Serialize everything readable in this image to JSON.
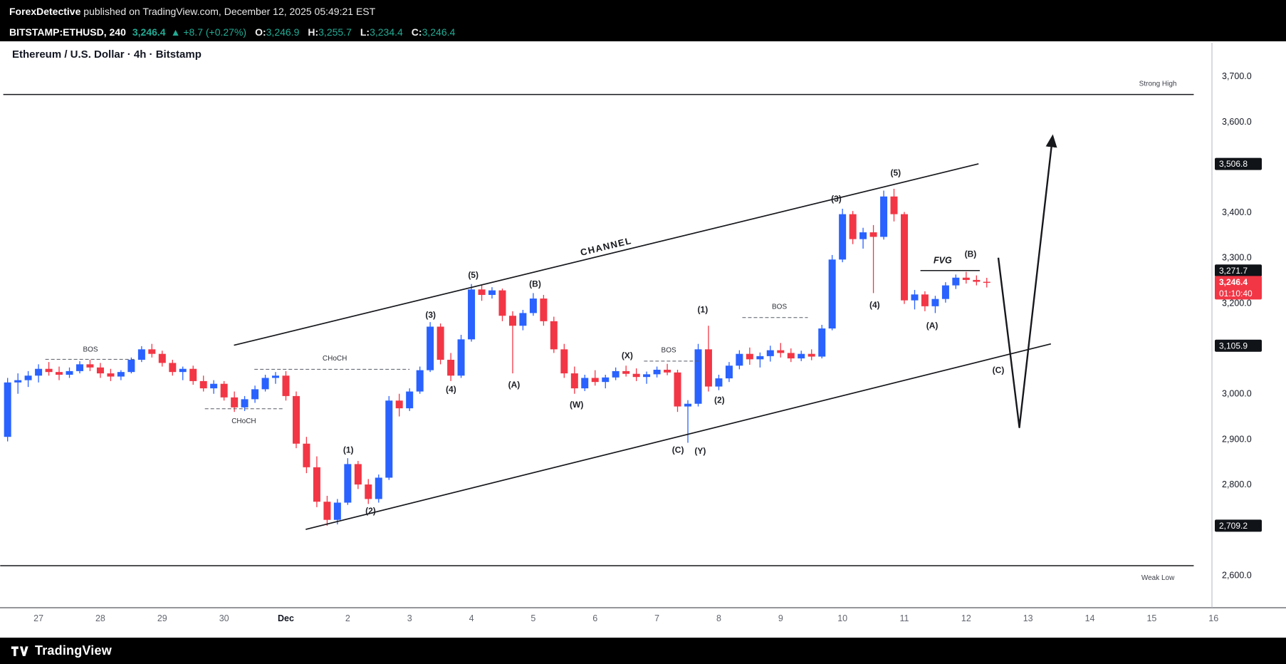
{
  "publish_bar": {
    "author": "ForexDetective",
    "text": " published on TradingView.com, December 12, 2025 05:49:21 EST"
  },
  "symbol_bar": {
    "symbol": "BITSTAMP:ETHUSD, 240",
    "last": "3,246.4",
    "change": "▲ +8.7 (+0.27%)",
    "ohlc": [
      {
        "label": "O:",
        "value": "3,246.9"
      },
      {
        "label": "H:",
        "value": "3,255.7"
      },
      {
        "label": "L:",
        "value": "3,234.4"
      },
      {
        "label": "C:",
        "value": "3,246.4"
      }
    ]
  },
  "chart_title": "Ethereum / U.S. Dollar · 4h · Bitstamp",
  "footer_brand": "TradingView",
  "colors": {
    "up": "#2962ff",
    "down": "#f23645",
    "accent_red": "#f23645",
    "badge_dark": "#101318",
    "text_dark": "#131722",
    "text_gray": "#62666f",
    "line_dark": "#17181c"
  },
  "chart_data": {
    "type": "candlestick",
    "title": "Ethereum / U.S. Dollar · 4h · Bitstamp",
    "symbol": "BITSTAMP:ETHUSD",
    "interval": "240",
    "price_axis": {
      "min": 2600,
      "max": 3700,
      "ticks": [
        3700,
        3600,
        3400,
        3300,
        3200,
        3000,
        2900,
        2800,
        2600
      ]
    },
    "time_axis": {
      "ticks": [
        {
          "t": 1,
          "label": "27"
        },
        {
          "t": 2,
          "label": "28"
        },
        {
          "t": 3,
          "label": "29"
        },
        {
          "t": 4,
          "label": "30"
        },
        {
          "t": 5,
          "label": "Dec"
        },
        {
          "t": 6,
          "label": "2"
        },
        {
          "t": 7,
          "label": "3"
        },
        {
          "t": 8,
          "label": "4"
        },
        {
          "t": 9,
          "label": "5"
        },
        {
          "t": 10,
          "label": "6"
        },
        {
          "t": 11,
          "label": "7"
        },
        {
          "t": 12,
          "label": "8"
        },
        {
          "t": 13,
          "label": "9"
        },
        {
          "t": 14,
          "label": "10"
        },
        {
          "t": 15,
          "label": "11"
        },
        {
          "t": 16,
          "label": "12"
        },
        {
          "t": 17,
          "label": "13"
        },
        {
          "t": 18,
          "label": "14"
        },
        {
          "t": 19,
          "label": "15"
        },
        {
          "t": 20,
          "label": "16"
        }
      ]
    },
    "candles": [
      [
        0.5,
        2905,
        3035,
        2895,
        3025
      ],
      [
        0.667,
        3025,
        3045,
        3000,
        3030
      ],
      [
        0.833,
        3030,
        3050,
        3015,
        3040
      ],
      [
        1,
        3040,
        3065,
        3025,
        3055
      ],
      [
        1.167,
        3055,
        3070,
        3040,
        3048
      ],
      [
        1.333,
        3048,
        3060,
        3030,
        3042
      ],
      [
        1.5,
        3042,
        3058,
        3035,
        3050
      ],
      [
        1.667,
        3050,
        3072,
        3045,
        3065
      ],
      [
        1.833,
        3065,
        3075,
        3050,
        3058
      ],
      [
        2,
        3058,
        3068,
        3035,
        3045
      ],
      [
        2.167,
        3045,
        3055,
        3028,
        3038
      ],
      [
        2.333,
        3038,
        3052,
        3030,
        3048
      ],
      [
        2.5,
        3048,
        3080,
        3045,
        3075
      ],
      [
        2.667,
        3075,
        3105,
        3070,
        3098
      ],
      [
        2.833,
        3098,
        3110,
        3080,
        3088
      ],
      [
        3,
        3088,
        3095,
        3060,
        3068
      ],
      [
        3.167,
        3068,
        3075,
        3040,
        3048
      ],
      [
        3.333,
        3048,
        3060,
        3030,
        3055
      ],
      [
        3.5,
        3055,
        3062,
        3020,
        3028
      ],
      [
        3.667,
        3028,
        3040,
        3005,
        3012
      ],
      [
        3.833,
        3012,
        3030,
        3000,
        3022
      ],
      [
        4,
        3022,
        3028,
        2985,
        2992
      ],
      [
        4.167,
        2992,
        3005,
        2960,
        2970
      ],
      [
        4.333,
        2970,
        2995,
        2962,
        2988
      ],
      [
        4.5,
        2988,
        3018,
        2980,
        3010
      ],
      [
        4.667,
        3010,
        3042,
        3005,
        3035
      ],
      [
        4.833,
        3035,
        3048,
        3022,
        3040
      ],
      [
        5,
        3040,
        3050,
        2985,
        2995
      ],
      [
        5.167,
        2995,
        3005,
        2880,
        2890
      ],
      [
        5.333,
        2890,
        2905,
        2825,
        2838
      ],
      [
        5.5,
        2838,
        2862,
        2750,
        2762
      ],
      [
        5.667,
        2762,
        2775,
        2709,
        2722
      ],
      [
        5.833,
        2722,
        2768,
        2712,
        2760
      ],
      [
        6,
        2760,
        2858,
        2755,
        2845
      ],
      [
        6.167,
        2845,
        2852,
        2790,
        2800
      ],
      [
        6.333,
        2800,
        2812,
        2757,
        2768
      ],
      [
        6.5,
        2768,
        2822,
        2760,
        2815
      ],
      [
        6.667,
        2815,
        2995,
        2810,
        2985
      ],
      [
        6.833,
        2985,
        3000,
        2950,
        2968
      ],
      [
        7,
        2968,
        3012,
        2962,
        3005
      ],
      [
        7.167,
        3005,
        3060,
        3000,
        3052
      ],
      [
        7.333,
        3052,
        3158,
        3048,
        3148
      ],
      [
        7.5,
        3148,
        3155,
        3065,
        3075
      ],
      [
        7.667,
        3075,
        3090,
        3028,
        3040
      ],
      [
        7.833,
        3040,
        3130,
        3035,
        3120
      ],
      [
        8,
        3120,
        3242,
        3115,
        3230
      ],
      [
        8.167,
        3230,
        3240,
        3205,
        3218
      ],
      [
        8.333,
        3218,
        3235,
        3210,
        3228
      ],
      [
        8.5,
        3228,
        3232,
        3160,
        3172
      ],
      [
        8.667,
        3172,
        3182,
        3045,
        3150
      ],
      [
        8.833,
        3150,
        3185,
        3140,
        3178
      ],
      [
        9,
        3178,
        3222,
        3172,
        3210
      ],
      [
        9.167,
        3210,
        3218,
        3150,
        3160
      ],
      [
        9.333,
        3160,
        3170,
        3090,
        3098
      ],
      [
        9.5,
        3098,
        3110,
        3035,
        3045
      ],
      [
        9.667,
        3045,
        3060,
        3000,
        3012
      ],
      [
        9.833,
        3012,
        3042,
        3006,
        3035
      ],
      [
        10,
        3035,
        3052,
        3018,
        3026
      ],
      [
        10.167,
        3026,
        3042,
        3012,
        3036
      ],
      [
        10.333,
        3036,
        3058,
        3030,
        3050
      ],
      [
        10.5,
        3050,
        3062,
        3038,
        3044
      ],
      [
        10.667,
        3044,
        3056,
        3028,
        3037
      ],
      [
        10.833,
        3037,
        3049,
        3022,
        3043
      ],
      [
        11,
        3043,
        3060,
        3036,
        3053
      ],
      [
        11.167,
        3053,
        3066,
        3041,
        3047
      ],
      [
        11.333,
        3047,
        3053,
        2960,
        2972
      ],
      [
        11.5,
        2972,
        2986,
        2892,
        2978
      ],
      [
        11.667,
        2978,
        3110,
        2972,
        3098
      ],
      [
        11.833,
        3098,
        3150,
        3005,
        3016
      ],
      [
        12,
        3016,
        3042,
        3008,
        3034
      ],
      [
        12.167,
        3034,
        3070,
        3026,
        3062
      ],
      [
        12.333,
        3062,
        3096,
        3054,
        3088
      ],
      [
        12.5,
        3088,
        3102,
        3064,
        3076
      ],
      [
        12.667,
        3076,
        3091,
        3058,
        3083
      ],
      [
        12.833,
        3083,
        3106,
        3071,
        3096
      ],
      [
        13,
        3096,
        3112,
        3080,
        3090
      ],
      [
        13.167,
        3090,
        3100,
        3070,
        3078
      ],
      [
        13.333,
        3078,
        3095,
        3072,
        3088
      ],
      [
        13.5,
        3088,
        3098,
        3074,
        3082
      ],
      [
        13.667,
        3082,
        3152,
        3078,
        3144
      ],
      [
        13.833,
        3144,
        3306,
        3140,
        3296
      ],
      [
        14,
        3296,
        3408,
        3290,
        3396
      ],
      [
        14.167,
        3396,
        3403,
        3330,
        3341
      ],
      [
        14.333,
        3341,
        3366,
        3320,
        3356
      ],
      [
        14.5,
        3356,
        3372,
        3222,
        3346
      ],
      [
        14.667,
        3346,
        3448,
        3340,
        3435
      ],
      [
        14.833,
        3435,
        3452,
        3380,
        3396
      ],
      [
        15,
        3396,
        3401,
        3198,
        3206
      ],
      [
        15.167,
        3206,
        3229,
        3186,
        3219
      ],
      [
        15.333,
        3219,
        3226,
        3182,
        3193
      ],
      [
        15.5,
        3193,
        3216,
        3178,
        3209
      ],
      [
        15.667,
        3209,
        3246,
        3201,
        3239
      ],
      [
        15.833,
        3239,
        3263,
        3231,
        3256
      ],
      [
        16,
        3256,
        3269,
        3243,
        3251
      ],
      [
        16.167,
        3251,
        3261,
        3239,
        3247
      ],
      [
        16.333,
        3246.9,
        3255.7,
        3234.4,
        3246.4
      ]
    ],
    "price_badges": [
      {
        "p": 3506.8,
        "label": "3,506.8",
        "type": "level"
      },
      {
        "p": 3271.7,
        "label": "3,271.7",
        "type": "level"
      },
      {
        "p": 3246.4,
        "label": "3,246.4",
        "type": "last",
        "countdown": "01:10:40"
      },
      {
        "p": 3105.9,
        "label": "3,105.9",
        "type": "level"
      },
      {
        "p": 2709.2,
        "label": "2,709.2",
        "type": "level"
      }
    ],
    "annotations": {
      "channel": {
        "label": "CHANNEL",
        "top": {
          "t1": 4.16,
          "p1": 3107,
          "t2": 16.2,
          "p2": 3507
        },
        "bottom": {
          "t1": 5.32,
          "p1": 2701,
          "t2": 17.37,
          "p2": 3110
        },
        "label_t": 10.19,
        "label_p": 3318
      },
      "horizontal_lines": [
        {
          "name": "strong-high",
          "label": "Strong High",
          "p": 3660,
          "t1": 0.43,
          "t2": 19.68,
          "label_t": 19.1,
          "label_p": 3684
        },
        {
          "name": "weak-low",
          "label": "Weak Low",
          "p": 2621,
          "t1": 0.38,
          "t2": 19.68,
          "label_t": 19.1,
          "label_p": 2594
        }
      ],
      "structure_labels": [
        {
          "label": "BOS",
          "p": 3076,
          "t1": 1.11,
          "t2": 2.57,
          "label_t": 1.84,
          "label_p": 3098
        },
        {
          "label": "CHoCH",
          "p": 2967,
          "t1": 3.69,
          "t2": 4.95,
          "label_t": 4.32,
          "label_p": 2940
        },
        {
          "label": "CHoCH",
          "p": 3054,
          "t1": 4.49,
          "t2": 7.0,
          "label_t": 5.79,
          "label_p": 3078
        },
        {
          "label": "BOS",
          "p": 3072,
          "t1": 10.79,
          "t2": 11.72,
          "label_t": 11.19,
          "label_p": 3096
        },
        {
          "label": "BOS",
          "p": 3168,
          "t1": 12.38,
          "t2": 13.44,
          "label_t": 12.98,
          "label_p": 3192
        }
      ],
      "fvg": {
        "label": "FVG",
        "line_p": 3271.7,
        "line_t1": 15.26,
        "line_t2": 16.22,
        "label_t": 15.62,
        "label_p": 3294
      },
      "wave_labels": [
        {
          "t": 6.01,
          "p": 2876,
          "label": "(1)"
        },
        {
          "t": 6.37,
          "p": 2742,
          "label": "(2)"
        },
        {
          "t": 7.34,
          "p": 3174,
          "label": "(3)"
        },
        {
          "t": 7.67,
          "p": 3010,
          "label": "(4)"
        },
        {
          "t": 8.03,
          "p": 3262,
          "label": "(5)"
        },
        {
          "t": 8.69,
          "p": 3020,
          "label": "(A)"
        },
        {
          "t": 9.03,
          "p": 3242,
          "label": "(B)"
        },
        {
          "t": 9.7,
          "p": 2976,
          "label": "(W)"
        },
        {
          "t": 10.52,
          "p": 3084,
          "label": "(X)"
        },
        {
          "t": 11.34,
          "p": 2876,
          "label": "(C)"
        },
        {
          "t": 11.7,
          "p": 2874,
          "label": "(Y)"
        },
        {
          "t": 11.74,
          "p": 3186,
          "label": "(1)"
        },
        {
          "t": 12.01,
          "p": 2986,
          "label": "(2)"
        },
        {
          "t": 13.9,
          "p": 3430,
          "label": "(3)"
        },
        {
          "t": 14.52,
          "p": 3196,
          "label": "(4)"
        },
        {
          "t": 14.86,
          "p": 3487,
          "label": "(5)"
        },
        {
          "t": 15.45,
          "p": 3150,
          "label": "(A)"
        },
        {
          "t": 16.07,
          "p": 3308,
          "label": "(B)"
        },
        {
          "t": 16.52,
          "p": 3052,
          "label": "(C)"
        }
      ],
      "projection": {
        "points": [
          [
            16.52,
            3300
          ],
          [
            16.86,
            2926
          ],
          [
            17.39,
            3558
          ]
        ]
      }
    }
  }
}
